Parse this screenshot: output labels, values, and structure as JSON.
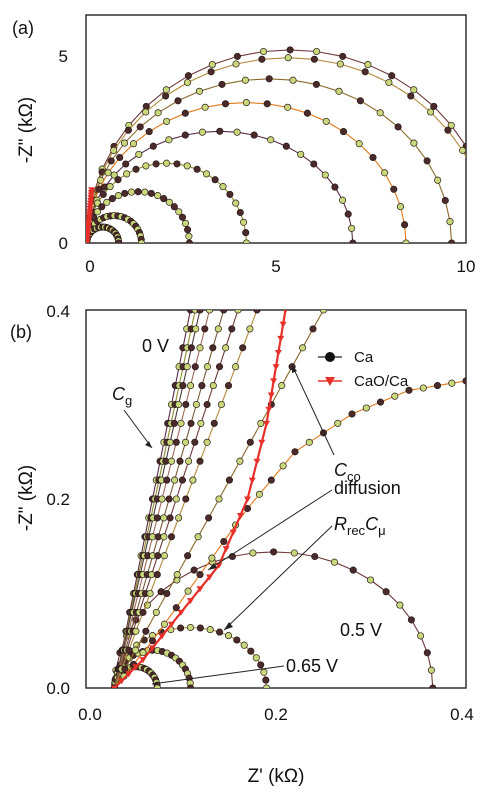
{
  "figure": {
    "xlabel": "Z' (kΩ)",
    "colors": {
      "ca_curves": [
        "#6f3a3a",
        "#b08a3a",
        "#8a6a2a",
        "#e07a1a",
        "#5a2a4a",
        "#8c8c2a",
        "#4a3a3a",
        "#a06a5a",
        "#7a5a3a"
      ],
      "cao_ca": "#e8302a",
      "marker_fill_a": "#4a2a2a",
      "marker_fill_b": "#c8d87a"
    }
  },
  "chart_data": [
    {
      "panel_label": "(a)",
      "type": "scatter",
      "xlabel": "",
      "ylabel": "-Z\" (kΩ)",
      "xlim": [
        0,
        10
      ],
      "ylim": [
        0,
        6
      ],
      "x_ticks": [
        "0",
        "5",
        "10"
      ],
      "y_ticks": [
        "0",
        "5"
      ],
      "note": "Nyquist arcs for Ca at several biases; CaO/Ca shown as a near-vertical red line",
      "series": [
        {
          "name": "Ca",
          "kind": "arc",
          "r": 5.35,
          "x0": 0.02,
          "top_k": 0.95
        },
        {
          "name": "Ca",
          "kind": "arc",
          "r": 5.3,
          "x0": 0.02,
          "top_k": 0.92
        },
        {
          "name": "Ca",
          "kind": "arc",
          "r": 4.8,
          "x0": 0.02,
          "top_k": 0.9
        },
        {
          "name": "Ca",
          "kind": "arc",
          "r": 4.2,
          "x0": 0.02,
          "top_k": 0.88
        },
        {
          "name": "Ca",
          "kind": "arc",
          "r": 3.5,
          "x0": 0.02,
          "top_k": 0.84
        },
        {
          "name": "Ca",
          "kind": "arc",
          "r": 2.1,
          "x0": 0.02,
          "top_k": 1.0
        },
        {
          "name": "Ca",
          "kind": "arc",
          "r": 1.35,
          "x0": 0.02,
          "top_k": 1.0
        },
        {
          "name": "Ca",
          "kind": "arc",
          "r": 0.72,
          "x0": 0.02,
          "top_k": 1.0
        },
        {
          "name": "Ca",
          "kind": "arc",
          "r": 0.42,
          "x0": 0.02,
          "top_k": 1.0
        },
        {
          "name": "CaO/Ca",
          "kind": "line",
          "points": [
            [
              0.02,
              0.0
            ],
            [
              0.15,
              1.4
            ],
            [
              0.3,
              3.2
            ],
            [
              0.45,
              5.0
            ],
            [
              0.55,
              6.0
            ]
          ]
        }
      ]
    },
    {
      "panel_label": "(b)",
      "type": "scatter",
      "xlabel": "Z' (kΩ)",
      "ylabel": "-Z\" (kΩ)",
      "xlim": [
        0.0,
        0.4
      ],
      "ylim": [
        0.0,
        0.4
      ],
      "x_ticks": [
        "0.0",
        "0.2",
        "0.4"
      ],
      "y_ticks": [
        "0.0",
        "0.2",
        "0.4"
      ],
      "legend": [
        "Ca",
        "CaO/Ca"
      ],
      "legend_position": "top-right",
      "annotations": {
        "v0": "0 V",
        "cg_main": "C",
        "cg_sub": "g",
        "cco_main": "C",
        "cco_sub": "co",
        "diffusion": "diffusion",
        "rrec_main": "R",
        "rrec_sub": "rec",
        "cmu_main": "C",
        "cmu_sub": "μ",
        "v05": "0.5 V",
        "v065": "0.65 V"
      },
      "series": [
        {
          "name": "Ca",
          "kind": "arc",
          "x0": 0.03,
          "x1": 0.365,
          "top_k": 0.86
        },
        {
          "name": "Ca",
          "kind": "arc",
          "x0": 0.03,
          "x1": 0.19,
          "top_k": 0.8
        },
        {
          "name": "Ca",
          "kind": "arc",
          "x0": 0.03,
          "x1": 0.11,
          "top_k": 1.0
        },
        {
          "name": "Ca",
          "kind": "arc",
          "x0": 0.03,
          "x1": 0.075,
          "top_k": 1.0
        },
        {
          "name": "Ca",
          "kind": "line",
          "points": [
            [
              0.03,
              0.0
            ],
            [
              0.11,
              0.4
            ]
          ]
        },
        {
          "name": "Ca",
          "kind": "line",
          "points": [
            [
              0.03,
              0.0
            ],
            [
              0.115,
              0.4
            ]
          ]
        },
        {
          "name": "Ca",
          "kind": "line",
          "points": [
            [
              0.03,
              0.0
            ],
            [
              0.12,
              0.4
            ]
          ]
        },
        {
          "name": "Ca",
          "kind": "line",
          "points": [
            [
              0.03,
              0.0
            ],
            [
              0.13,
              0.4
            ]
          ]
        },
        {
          "name": "Ca",
          "kind": "line",
          "points": [
            [
              0.03,
              0.0
            ],
            [
              0.145,
              0.4
            ]
          ]
        },
        {
          "name": "Ca",
          "kind": "line",
          "points": [
            [
              0.03,
              0.0
            ],
            [
              0.16,
              0.4
            ]
          ]
        },
        {
          "name": "Ca",
          "kind": "line",
          "points": [
            [
              0.03,
              0.0
            ],
            [
              0.18,
              0.4
            ]
          ]
        },
        {
          "name": "Ca",
          "kind": "line",
          "points": [
            [
              0.03,
              0.0
            ],
            [
              0.25,
              0.4
            ]
          ]
        },
        {
          "name": "Ca",
          "kind": "curve",
          "points": [
            [
              0.03,
              0.0
            ],
            [
              0.07,
              0.05
            ],
            [
              0.12,
              0.12
            ],
            [
              0.17,
              0.19
            ],
            [
              0.22,
              0.25
            ],
            [
              0.28,
              0.29
            ],
            [
              0.34,
              0.315
            ],
            [
              0.4,
              0.325
            ]
          ]
        },
        {
          "name": "CaO/Ca",
          "kind": "curve",
          "points": [
            [
              0.03,
              0.0
            ],
            [
              0.06,
              0.03
            ],
            [
              0.1,
              0.08
            ],
            [
              0.14,
              0.13
            ],
            [
              0.17,
              0.2
            ],
            [
              0.19,
              0.28
            ],
            [
              0.2,
              0.34
            ],
            [
              0.21,
              0.4
            ]
          ]
        }
      ]
    }
  ]
}
